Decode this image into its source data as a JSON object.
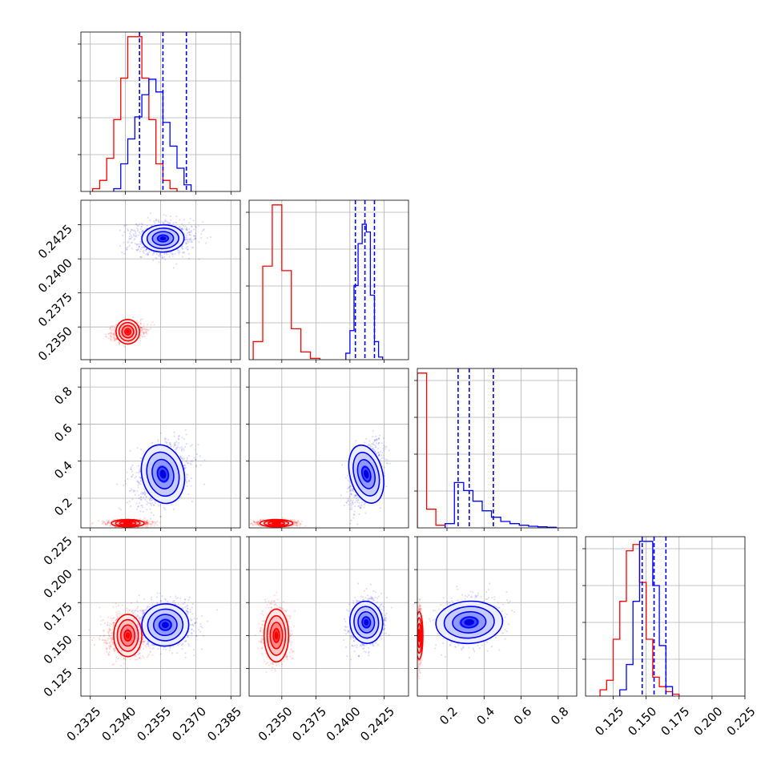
{
  "chart_data": {
    "type": "corner",
    "colors": {
      "series_a": "#ff0000",
      "series_b": "#0000ff",
      "grid": "#b0b0b0"
    },
    "grid": true,
    "ticks": {
      "x0": [
        0.2325,
        0.234,
        0.2355,
        0.237,
        0.2385
      ],
      "x0_labels": [
        "0.2325",
        "0.2340",
        "0.2355",
        "0.2370",
        "0.2385"
      ],
      "x1": [
        0.235,
        0.2375,
        0.24,
        0.2425
      ],
      "x1_labels": [
        "0.2350",
        "0.2375",
        "0.2400",
        "0.2425"
      ],
      "x2": [
        0.2,
        0.4,
        0.6,
        0.8
      ],
      "x2_labels": [
        "0.2",
        "0.4",
        "0.6",
        "0.8"
      ],
      "x3": [
        0.125,
        0.15,
        0.175,
        0.2,
        0.225
      ],
      "x3_labels": [
        "0.125",
        "0.150",
        "0.175",
        "0.200",
        "0.225"
      ],
      "y1": [
        0.235,
        0.2375,
        0.24,
        0.2425
      ],
      "y1_labels": [
        "0.2350",
        "0.2375",
        "0.2400",
        "0.2425"
      ],
      "y2": [
        0.2,
        0.4,
        0.6,
        0.8
      ],
      "y2_labels": [
        "0.2",
        "0.4",
        "0.6",
        "0.8"
      ],
      "y3": [
        0.125,
        0.15,
        0.175,
        0.2,
        0.225
      ],
      "y3_labels": [
        "0.125",
        "0.150",
        "0.175",
        "0.200",
        "0.225"
      ]
    },
    "ranges": {
      "p0": [
        0.2321,
        0.2389
      ],
      "p1": [
        0.2326,
        0.2443
      ],
      "p2": [
        0.04,
        0.9
      ],
      "p3": [
        0.104,
        0.225
      ]
    },
    "marginals": [
      {
        "param": "p0",
        "quantiles_series_b": [
          0.2346,
          0.2356,
          0.2366
        ],
        "series_a": {
          "start": 0.2326,
          "step": 0.0003,
          "counts": [
            0.05,
            0.2,
            0.6,
            1.3,
            2.05,
            2.8,
            2.8,
            2.05,
            1.3,
            0.5,
            0.2,
            0.05
          ]
        },
        "series_b": {
          "start": 0.2335,
          "step": 0.0003,
          "counts": [
            0.05,
            0.5,
            0.95,
            1.35,
            1.75,
            2.03,
            1.8,
            1.25,
            0.82,
            0.42,
            0.12
          ]
        }
      },
      {
        "param": "p1",
        "quantiles_series_b": [
          0.2404,
          0.2411,
          0.2418
        ],
        "series_a": {
          "start": 0.2329,
          "step": 0.0007,
          "counts": [
            0.28,
            1.45,
            2.4,
            1.38,
            0.48,
            0.12,
            0.02
          ]
        },
        "series_b": {
          "start": 0.2397,
          "step": 0.0003,
          "counts": [
            0.1,
            0.45,
            1.15,
            1.8,
            2.1,
            1.98,
            1.0,
            0.28,
            0.04
          ]
        }
      },
      {
        "param": "p2",
        "quantiles_series_b": [
          0.26,
          0.32,
          0.45
        ],
        "series_a": {
          "start": 0.04,
          "step": 0.05,
          "counts": [
            2.9,
            0.35,
            0.05
          ]
        },
        "series_b": {
          "start": 0.19,
          "step": 0.05,
          "counts": [
            0.08,
            0.85,
            0.7,
            0.5,
            0.32,
            0.2,
            0.12,
            0.08,
            0.05,
            0.03,
            0.02,
            0.01
          ]
        }
      },
      {
        "param": "p3",
        "quantiles_series_b": [
          0.147,
          0.156,
          0.165
        ],
        "series_a": {
          "start": 0.115,
          "step": 0.005,
          "counts": [
            0.1,
            0.25,
            0.9,
            1.5,
            2.3,
            2.4,
            1.8,
            0.9,
            0.3,
            0.15,
            0.07,
            0.03
          ]
        },
        "series_b": {
          "start": 0.13,
          "step": 0.005,
          "counts": [
            0.1,
            0.5,
            1.5,
            2.45,
            2.45,
            1.75,
            0.8,
            0.15
          ]
        }
      }
    ],
    "pairs": [
      {
        "row": 1,
        "col": 0,
        "series_a": {
          "center": [
            0.2341,
            0.23465
          ],
          "sd": [
            0.00025,
            0.00045
          ],
          "rho": 0.3,
          "scatter": [
            0.0006,
            0.0006
          ]
        },
        "series_b": {
          "center": [
            0.2356,
            0.2415
          ],
          "sd": [
            0.00045,
            0.0005
          ],
          "rho": 0.05,
          "scatter": [
            0.0012,
            0.0011
          ]
        }
      },
      {
        "row": 2,
        "col": 0,
        "series_a": {
          "center": [
            0.2341,
            0.065
          ],
          "sd": [
            0.00035,
            0.01
          ],
          "rho": 0.0,
          "scatter": [
            0.0008,
            0.015
          ]
        },
        "series_b": {
          "center": [
            0.2356,
            0.33
          ],
          "sd": [
            0.00045,
            0.08
          ],
          "rho": 0.4,
          "scatter": [
            0.0011,
            0.16
          ]
        }
      },
      {
        "row": 3,
        "col": 0,
        "series_a": {
          "center": [
            0.2341,
            0.15
          ],
          "sd": [
            0.0003,
            0.008
          ],
          "rho": 0.0,
          "scatter": [
            0.0009,
            0.015
          ]
        },
        "series_b": {
          "center": [
            0.2357,
            0.158
          ],
          "sd": [
            0.0005,
            0.008
          ],
          "rho": 0.1,
          "scatter": [
            0.0012,
            0.016
          ]
        }
      },
      {
        "row": 2,
        "col": 1,
        "series_a": {
          "center": [
            0.2346,
            0.065
          ],
          "sd": [
            0.0006,
            0.01
          ],
          "rho": 0.0,
          "scatter": [
            0.0013,
            0.015
          ]
        },
        "series_b": {
          "center": [
            0.2412,
            0.33
          ],
          "sd": [
            0.0006,
            0.08
          ],
          "rho": 0.45,
          "scatter": [
            0.0011,
            0.16
          ]
        }
      },
      {
        "row": 3,
        "col": 1,
        "series_a": {
          "center": [
            0.2346,
            0.15
          ],
          "sd": [
            0.00045,
            0.01
          ],
          "rho": 0.0,
          "scatter": [
            0.0009,
            0.018
          ]
        },
        "series_b": {
          "center": [
            0.2412,
            0.16
          ],
          "sd": [
            0.0006,
            0.008
          ],
          "rho": 0.15,
          "scatter": [
            0.0011,
            0.016
          ]
        }
      },
      {
        "row": 3,
        "col": 2,
        "series_a": {
          "center": [
            0.05,
            0.15
          ],
          "sd": [
            0.01,
            0.009
          ],
          "rho": 0.0,
          "scatter": [
            0.012,
            0.018
          ]
        },
        "series_b": {
          "center": [
            0.32,
            0.16
          ],
          "sd": [
            0.09,
            0.008
          ],
          "rho": 0.1,
          "scatter": [
            0.15,
            0.016
          ]
        }
      }
    ],
    "contour_levels_sigma": [
      0.5,
      1.0,
      1.5,
      2.0
    ]
  }
}
